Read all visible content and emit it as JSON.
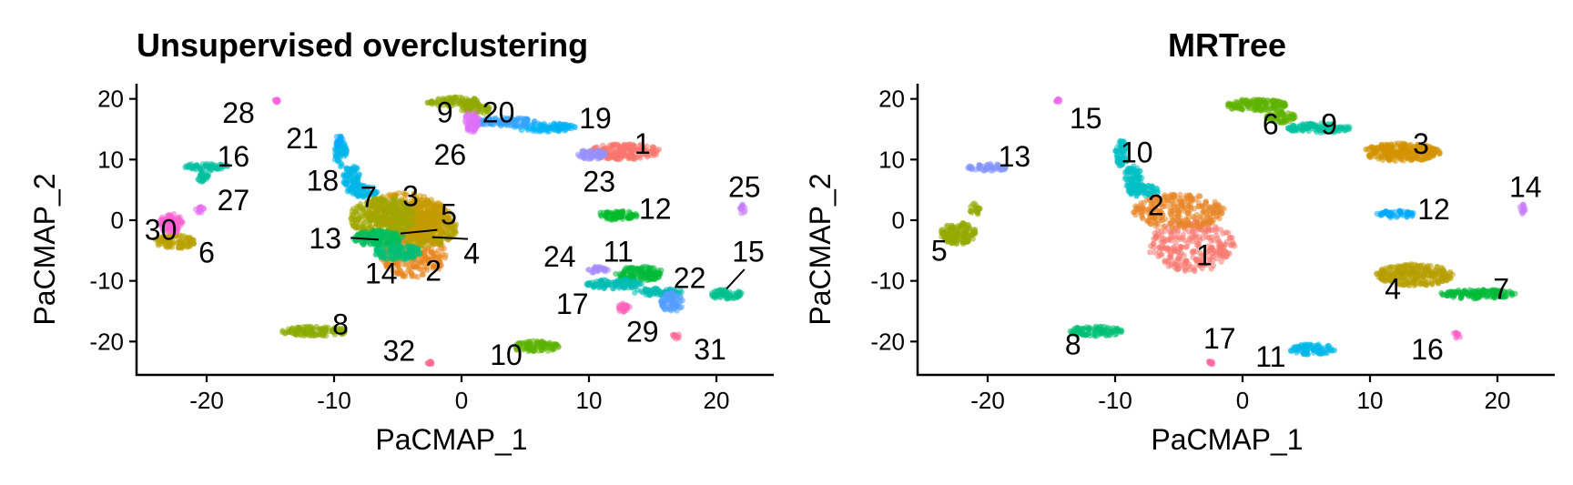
{
  "chart_data": [
    {
      "type": "scatter",
      "title": "Unsupervised overclustering",
      "xlabel": "PaCMAP_1",
      "ylabel": "PaCMAP_2",
      "xlim": [
        -25.5,
        24.5
      ],
      "ylim": [
        -25.5,
        22.5
      ],
      "xticks": [
        -20,
        -10,
        0,
        10,
        20
      ],
      "yticks": [
        -20,
        -10,
        0,
        10,
        20
      ],
      "clusters": [
        {
          "label": "1",
          "color": "#F8766D",
          "blobs": [
            {
              "cx": 12.8,
              "cy": 11.3,
              "rx": 2.8,
              "ry": 1.3
            }
          ],
          "label_x": 14.2,
          "label_y": 12.6
        },
        {
          "label": "2",
          "color": "#E7851E",
          "blobs": [
            {
              "cx": -3.8,
              "cy": -5.5,
              "rx": 2.6,
              "ry": 4
            }
          ],
          "label_x": -2.2,
          "label_y": -8.3
        },
        {
          "label": "3",
          "color": "#D09400",
          "blobs": [
            {
              "cx": -4.5,
              "cy": 1.5,
              "rx": 3.2,
              "ry": 3
            }
          ],
          "label_x": -4,
          "label_y": 4
        },
        {
          "label": "4",
          "color": "#B2A100",
          "blobs": [
            {
              "cx": -2.8,
              "cy": -1.5,
              "rx": 2.5,
              "ry": 2.8
            }
          ],
          "label_x": 0.8,
          "label_y": -5.5
        },
        {
          "label": "5",
          "color": "#C49A00",
          "blobs": [
            {
              "cx": -3.5,
              "cy": 0.2,
              "rx": 2.8,
              "ry": 3
            }
          ],
          "label_x": -1,
          "label_y": 1
        },
        {
          "label": "6",
          "color": "#B9A100",
          "blobs": [
            {
              "cx": -22.5,
              "cy": -3.5,
              "rx": 1.6,
              "ry": 1.2
            }
          ],
          "label_x": -20,
          "label_y": -5.3
        },
        {
          "label": "7",
          "color": "#9FA800",
          "blobs": [
            {
              "cx": -6.2,
              "cy": 0.5,
              "rx": 2.6,
              "ry": 3.2
            }
          ],
          "label_x": -7.3,
          "label_y": 3.8
        },
        {
          "label": "8",
          "color": "#8AAB00",
          "blobs": [
            {
              "cx": -11.5,
              "cy": -18.3,
              "rx": 2.6,
              "ry": 0.8
            }
          ],
          "label_x": -9.5,
          "label_y": -17.2
        },
        {
          "label": "9",
          "color": "#8FAA00",
          "blobs": [
            {
              "cx": -0.5,
              "cy": 19.5,
              "rx": 2.2,
              "ry": 0.8
            },
            {
              "cx": 1.2,
              "cy": 18.2,
              "rx": 1.2,
              "ry": 0.7
            }
          ],
          "label_x": -1.3,
          "label_y": 17.8
        },
        {
          "label": "10",
          "color": "#5BB300",
          "blobs": [
            {
              "cx": 5.8,
              "cy": -20.8,
              "rx": 1.9,
              "ry": 0.9
            }
          ],
          "label_x": 3.5,
          "label_y": -22.2
        },
        {
          "label": "11",
          "color": "#00BA38",
          "blobs": [
            {
              "cx": 14,
              "cy": -8.8,
              "rx": 1.9,
              "ry": 1.2
            }
          ],
          "label_x": 12.3,
          "label_y": -5.2
        },
        {
          "label": "12",
          "color": "#00B92A",
          "blobs": [
            {
              "cx": 12.2,
              "cy": 0.8,
              "rx": 1.6,
              "ry": 0.8
            }
          ],
          "label_x": 15.2,
          "label_y": 1.9
        },
        {
          "label": "13",
          "color": "#00BD5C",
          "blobs": [
            {
              "cx": -6.5,
              "cy": -3,
              "rx": 2,
              "ry": 1.3
            }
          ],
          "label_x": -10.7,
          "label_y": -3
        },
        {
          "label": "14",
          "color": "#00BF74",
          "blobs": [
            {
              "cx": -5,
              "cy": -5.3,
              "rx": 1.8,
              "ry": 1.3
            }
          ],
          "label_x": -6.3,
          "label_y": -8.8
        },
        {
          "label": "15",
          "color": "#00C08D",
          "blobs": [
            {
              "cx": 20.8,
              "cy": -12.2,
              "rx": 1.2,
              "ry": 0.9
            }
          ],
          "label_x": 22.5,
          "label_y": -5.2
        },
        {
          "label": "16",
          "color": "#00BFA1",
          "blobs": [
            {
              "cx": -20,
              "cy": 8.8,
              "rx": 1.7,
              "ry": 0.6
            },
            {
              "cx": -20.3,
              "cy": 7.2,
              "rx": 0.5,
              "ry": 0.9
            }
          ],
          "label_x": -17.9,
          "label_y": 10.5
        },
        {
          "label": "17",
          "color": "#00BCB3",
          "blobs": [
            {
              "cx": 12,
              "cy": -10.5,
              "rx": 2.2,
              "ry": 0.8
            },
            {
              "cx": 15.5,
              "cy": -11.8,
              "rx": 2,
              "ry": 0.6
            }
          ],
          "label_x": 8.7,
          "label_y": -13.8
        },
        {
          "label": "18",
          "color": "#00B7E8",
          "blobs": [
            {
              "cx": -9.5,
              "cy": 11,
              "rx": 0.5,
              "ry": 2.2
            },
            {
              "cx": -8.6,
              "cy": 7,
              "rx": 0.7,
              "ry": 2
            },
            {
              "cx": -7.8,
              "cy": 4.8,
              "rx": 1.2,
              "ry": 1
            }
          ],
          "label_x": -10.9,
          "label_y": 6.5
        },
        {
          "label": "19",
          "color": "#00B0F6",
          "blobs": [
            {
              "cx": 6.5,
              "cy": 15.3,
              "rx": 2.5,
              "ry": 0.7
            }
          ],
          "label_x": 10.5,
          "label_y": 16.8
        },
        {
          "label": "20",
          "color": "#35A2FF",
          "blobs": [
            {
              "cx": 3.5,
              "cy": 16.2,
              "rx": 2.3,
              "ry": 0.7
            }
          ],
          "label_x": 2.9,
          "label_y": 17.8
        },
        {
          "label": "21",
          "color": "#00A9FF",
          "blobs": [
            {
              "cx": -9.6,
              "cy": 13,
              "rx": 0.3,
              "ry": 1
            }
          ],
          "label_x": -12.5,
          "label_y": 13.5
        },
        {
          "label": "22",
          "color": "#529EFF",
          "blobs": [
            {
              "cx": 16.5,
              "cy": -13.5,
              "rx": 0.9,
              "ry": 1.6
            }
          ],
          "label_x": 17.9,
          "label_y": -9.5
        },
        {
          "label": "23",
          "color": "#9590FF",
          "blobs": [
            {
              "cx": 10.2,
              "cy": 10.8,
              "rx": 1.2,
              "ry": 0.8
            }
          ],
          "label_x": 10.8,
          "label_y": 6.4
        },
        {
          "label": "24",
          "color": "#A58AFF",
          "blobs": [
            {
              "cx": 10.8,
              "cy": -8.2,
              "rx": 0.9,
              "ry": 0.6
            }
          ],
          "label_x": 7.7,
          "label_y": -6
        },
        {
          "label": "25",
          "color": "#C77CFF",
          "blobs": [
            {
              "cx": 22,
              "cy": 1.8,
              "rx": 0.3,
              "ry": 0.8
            }
          ],
          "label_x": 22.2,
          "label_y": 5.5
        },
        {
          "label": "26",
          "color": "#DF70F8",
          "blobs": [
            {
              "cx": 0.8,
              "cy": 16.2,
              "rx": 0.6,
              "ry": 1.8
            }
          ],
          "label_x": -0.9,
          "label_y": 10.8
        },
        {
          "label": "27",
          "color": "#E76BF3",
          "blobs": [
            {
              "cx": -20.5,
              "cy": 1.8,
              "rx": 0.4,
              "ry": 0.6
            }
          ],
          "label_x": -17.9,
          "label_y": 3.3
        },
        {
          "label": "28",
          "color": "#FA62DB",
          "blobs": [
            {
              "cx": -14.5,
              "cy": 19.7,
              "rx": 0.2,
              "ry": 0.3
            }
          ],
          "label_x": -17.5,
          "label_y": 17.7
        },
        {
          "label": "29",
          "color": "#FF62BC",
          "blobs": [
            {
              "cx": 12.8,
              "cy": -14.5,
              "rx": 0.5,
              "ry": 0.9
            }
          ],
          "label_x": 14.2,
          "label_y": -18.4
        },
        {
          "label": "30",
          "color": "#FD61D1",
          "blobs": [
            {
              "cx": -22.8,
              "cy": -0.5,
              "rx": 1,
              "ry": 1.6
            }
          ],
          "label_x": -23.6,
          "label_y": -1.6
        },
        {
          "label": "31",
          "color": "#FF6A98",
          "blobs": [
            {
              "cx": 16.8,
              "cy": -19,
              "rx": 0.3,
              "ry": 0.6
            }
          ],
          "label_x": 19.5,
          "label_y": -21.3
        },
        {
          "label": "32",
          "color": "#FF6C91",
          "blobs": [
            {
              "cx": -2.5,
              "cy": -23.5,
              "rx": 0.2,
              "ry": 0.3
            }
          ],
          "label_x": -4.9,
          "label_y": -21.5
        }
      ],
      "label_segments": [
        {
          "cluster": "5",
          "from": [
            -1.9,
            -1.6
          ],
          "to": [
            -4.8,
            -2.2
          ]
        },
        {
          "cluster": "4",
          "from": [
            0.5,
            -3.1
          ],
          "to": [
            -2.3,
            -2.8
          ]
        },
        {
          "cluster": "13",
          "from": [
            -8.7,
            -2.9
          ],
          "to": [
            -6.5,
            -3.2
          ]
        },
        {
          "cluster": "15",
          "from": [
            22.2,
            -8.1
          ],
          "to": [
            20.8,
            -11.3
          ]
        }
      ]
    },
    {
      "type": "scatter",
      "title": "MRTree",
      "xlabel": "PaCMAP_1",
      "ylabel": "PaCMAP_2",
      "xlim": [
        -25.5,
        24.5
      ],
      "ylim": [
        -25.5,
        22.5
      ],
      "xticks": [
        -20,
        -10,
        0,
        10,
        20
      ],
      "yticks": [
        -20,
        -10,
        0,
        10,
        20
      ],
      "clusters": [
        {
          "label": "1",
          "color": "#F8766D",
          "blobs": [
            {
              "cx": -4,
              "cy": -4.2,
              "rx": 3.4,
              "ry": 4.3
            }
          ],
          "label_x": -3,
          "label_y": -5.8
        },
        {
          "label": "2",
          "color": "#E88526",
          "blobs": [
            {
              "cx": -5,
              "cy": 1.5,
              "rx": 3.6,
              "ry": 2.8
            }
          ],
          "label_x": -6.8,
          "label_y": 2.5
        },
        {
          "label": "3",
          "color": "#D39200",
          "blobs": [
            {
              "cx": 12.5,
              "cy": 11.2,
              "rx": 3,
              "ry": 1.5
            }
          ],
          "label_x": 14,
          "label_y": 12.6
        },
        {
          "label": "4",
          "color": "#B79F00",
          "blobs": [
            {
              "cx": 13.5,
              "cy": -9,
              "rx": 3,
              "ry": 1.8
            }
          ],
          "label_x": 11.8,
          "label_y": -11.3
        },
        {
          "label": "5",
          "color": "#93AA00",
          "blobs": [
            {
              "cx": -22.3,
              "cy": -2.2,
              "rx": 1.4,
              "ry": 1.8
            },
            {
              "cx": -21,
              "cy": 1.8,
              "rx": 0.4,
              "ry": 1
            }
          ],
          "label_x": -23.8,
          "label_y": -5
        },
        {
          "label": "6",
          "color": "#5EB300",
          "blobs": [
            {
              "cx": 1,
              "cy": 19,
              "rx": 2.5,
              "ry": 1
            },
            {
              "cx": 3,
              "cy": 17,
              "rx": 1.2,
              "ry": 1
            }
          ],
          "label_x": 2.2,
          "label_y": 15.8
        },
        {
          "label": "7",
          "color": "#00BA38",
          "blobs": [
            {
              "cx": 18.5,
              "cy": -12.2,
              "rx": 3,
              "ry": 0.8
            }
          ],
          "label_x": 20.3,
          "label_y": -11.3
        },
        {
          "label": "8",
          "color": "#00BF74",
          "blobs": [
            {
              "cx": -11.5,
              "cy": -18.3,
              "rx": 2.3,
              "ry": 0.8
            }
          ],
          "label_x": -13.3,
          "label_y": -20.5
        },
        {
          "label": "9",
          "color": "#00C19F",
          "blobs": [
            {
              "cx": 6,
              "cy": 15.2,
              "rx": 2.5,
              "ry": 0.8
            }
          ],
          "label_x": 6.8,
          "label_y": 15.8
        },
        {
          "label": "10",
          "color": "#00BFC4",
          "blobs": [
            {
              "cx": -9.5,
              "cy": 11,
              "rx": 0.5,
              "ry": 2.2
            },
            {
              "cx": -8.6,
              "cy": 7,
              "rx": 0.7,
              "ry": 2
            },
            {
              "cx": -7.8,
              "cy": 4.8,
              "rx": 1.2,
              "ry": 1
            }
          ],
          "label_x": -8.3,
          "label_y": 11.2
        },
        {
          "label": "11",
          "color": "#00B8E7",
          "blobs": [
            {
              "cx": 5.5,
              "cy": -21.3,
              "rx": 1.8,
              "ry": 0.9
            }
          ],
          "label_x": 2.2,
          "label_y": -22.5
        },
        {
          "label": "12",
          "color": "#00A9FF",
          "blobs": [
            {
              "cx": 12,
              "cy": 1,
              "rx": 1.6,
              "ry": 0.6
            }
          ],
          "label_x": 15,
          "label_y": 1.8
        },
        {
          "label": "13",
          "color": "#8494FF",
          "blobs": [
            {
              "cx": -20,
              "cy": 8.7,
              "rx": 1.6,
              "ry": 0.6
            }
          ],
          "label_x": -17.9,
          "label_y": 10.5
        },
        {
          "label": "14",
          "color": "#C77CFF",
          "blobs": [
            {
              "cx": 22,
              "cy": 1.8,
              "rx": 0.3,
              "ry": 0.8
            }
          ],
          "label_x": 22.2,
          "label_y": 5.5
        },
        {
          "label": "15",
          "color": "#ED68ED",
          "blobs": [
            {
              "cx": -14.5,
              "cy": 19.7,
              "rx": 0.2,
              "ry": 0.3
            }
          ],
          "label_x": -12.3,
          "label_y": 16.8
        },
        {
          "label": "16",
          "color": "#FF61CC",
          "blobs": [
            {
              "cx": 16.8,
              "cy": -19,
              "rx": 0.3,
              "ry": 0.6
            }
          ],
          "label_x": 14.5,
          "label_y": -21.3
        },
        {
          "label": "17",
          "color": "#FF68A1",
          "blobs": [
            {
              "cx": -2.5,
              "cy": -23.5,
              "rx": 0.2,
              "ry": 0.3
            }
          ],
          "label_x": -1.8,
          "label_y": -19.5
        }
      ],
      "label_segments": []
    }
  ]
}
